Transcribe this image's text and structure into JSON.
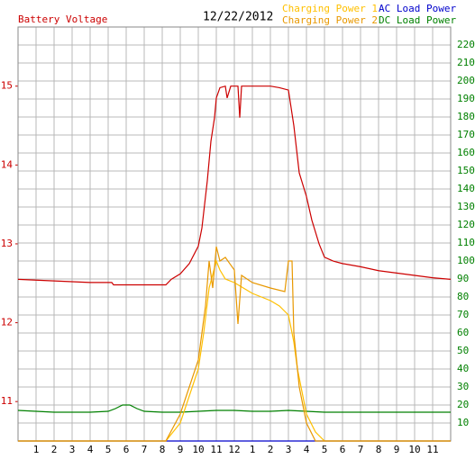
{
  "chart_data": {
    "type": "line",
    "title": "Battery Voltage",
    "subtitle": "12/22/2012",
    "xlim": [
      0,
      24
    ],
    "xticks": [
      1,
      2,
      3,
      4,
      5,
      6,
      7,
      8,
      9,
      10,
      11,
      12,
      {
        "value": 13,
        "label": "1"
      },
      {
        "value": 14,
        "label": "2"
      },
      {
        "value": 15,
        "label": "3"
      },
      {
        "value": 16,
        "label": "4"
      },
      {
        "value": 17,
        "label": "5"
      },
      {
        "value": 18,
        "label": "6"
      },
      {
        "value": 19,
        "label": "7"
      },
      {
        "value": 20,
        "label": "8"
      },
      {
        "value": 21,
        "label": "9"
      },
      {
        "value": 22,
        "label": "10"
      },
      {
        "value": 23,
        "label": "11"
      }
    ],
    "ylim": [
      10.5,
      15.75
    ],
    "yticks": [
      11,
      12,
      13,
      14,
      15
    ],
    "y2lim": [
      0,
      230
    ],
    "y2ticks": [
      10,
      20,
      30,
      40,
      50,
      60,
      70,
      80,
      90,
      100,
      110,
      120,
      130,
      140,
      150,
      160,
      170,
      180,
      190,
      200,
      210,
      220
    ],
    "grid": true,
    "series": [
      {
        "name": "AC Load Power",
        "color": "#0000cc",
        "axis": "y2",
        "x": [
          0,
          24
        ],
        "values": [
          0,
          0
        ]
      },
      {
        "name": "DC Load Power",
        "color": "#008000",
        "axis": "y2",
        "x": [
          0,
          2,
          4,
          5,
          5.4,
          5.8,
          6.2,
          6.6,
          7,
          8,
          9,
          10,
          11,
          12,
          13,
          14,
          15,
          16,
          17,
          18,
          20,
          22,
          24
        ],
        "values": [
          17,
          16,
          16,
          16.5,
          18,
          20,
          20,
          18,
          16.5,
          16,
          16,
          16.5,
          17,
          17,
          16.5,
          16.5,
          17,
          16.5,
          16,
          16,
          16,
          16,
          16
        ]
      },
      {
        "name": "Charging Power 1",
        "color": "#ffc000",
        "axis": "y2",
        "x": [
          0,
          8.2,
          9,
          9.5,
          10,
          10.3,
          10.6,
          11,
          11.2,
          11.5,
          12,
          12.5,
          13,
          14,
          14.5,
          15,
          15.3,
          15.5,
          16,
          16.5,
          17,
          24
        ],
        "values": [
          0,
          0,
          10,
          25,
          40,
          60,
          85,
          100,
          95,
          90,
          88,
          85,
          82,
          78,
          75,
          70,
          55,
          40,
          15,
          5,
          0,
          0
        ]
      },
      {
        "name": "Charging Power 2",
        "color": "#e89800",
        "axis": "y2",
        "x": [
          0,
          8.2,
          9,
          9.5,
          10,
          10.4,
          10.6,
          10.8,
          11,
          11.2,
          11.5,
          12,
          12.2,
          12.4,
          13,
          14,
          14.8,
          15,
          15.2,
          15.3,
          15.6,
          16,
          16.5,
          24
        ],
        "values": [
          0,
          0,
          15,
          30,
          45,
          75,
          100,
          85,
          108,
          100,
          102,
          95,
          65,
          92,
          88,
          85,
          83,
          100,
          100,
          60,
          30,
          10,
          0,
          0
        ]
      },
      {
        "name": "Battery Voltage",
        "color": "#cc0000",
        "x": [
          0,
          2,
          4,
          5.2,
          5.3,
          8.2,
          8.5,
          9,
          9.5,
          10,
          10.2,
          10.5,
          10.7,
          10.9,
          11,
          11.2,
          11.5,
          11.6,
          11.8,
          12.2,
          12.3,
          12.4,
          13,
          14,
          14.5,
          15,
          15.3,
          15.6,
          16,
          16.3,
          16.7,
          17,
          17.5,
          18,
          19,
          20,
          21,
          22,
          23,
          24
        ],
        "values": [
          12.55,
          12.53,
          12.51,
          12.51,
          12.48,
          12.48,
          12.55,
          12.62,
          12.75,
          12.97,
          13.2,
          13.8,
          14.3,
          14.6,
          14.85,
          14.98,
          15.0,
          14.85,
          15.0,
          15.0,
          14.6,
          15.0,
          15.0,
          15.0,
          14.98,
          14.95,
          14.5,
          13.9,
          13.6,
          13.3,
          13.0,
          12.83,
          12.78,
          12.75,
          12.71,
          12.66,
          12.63,
          12.6,
          12.57,
          12.55
        ]
      }
    ]
  }
}
